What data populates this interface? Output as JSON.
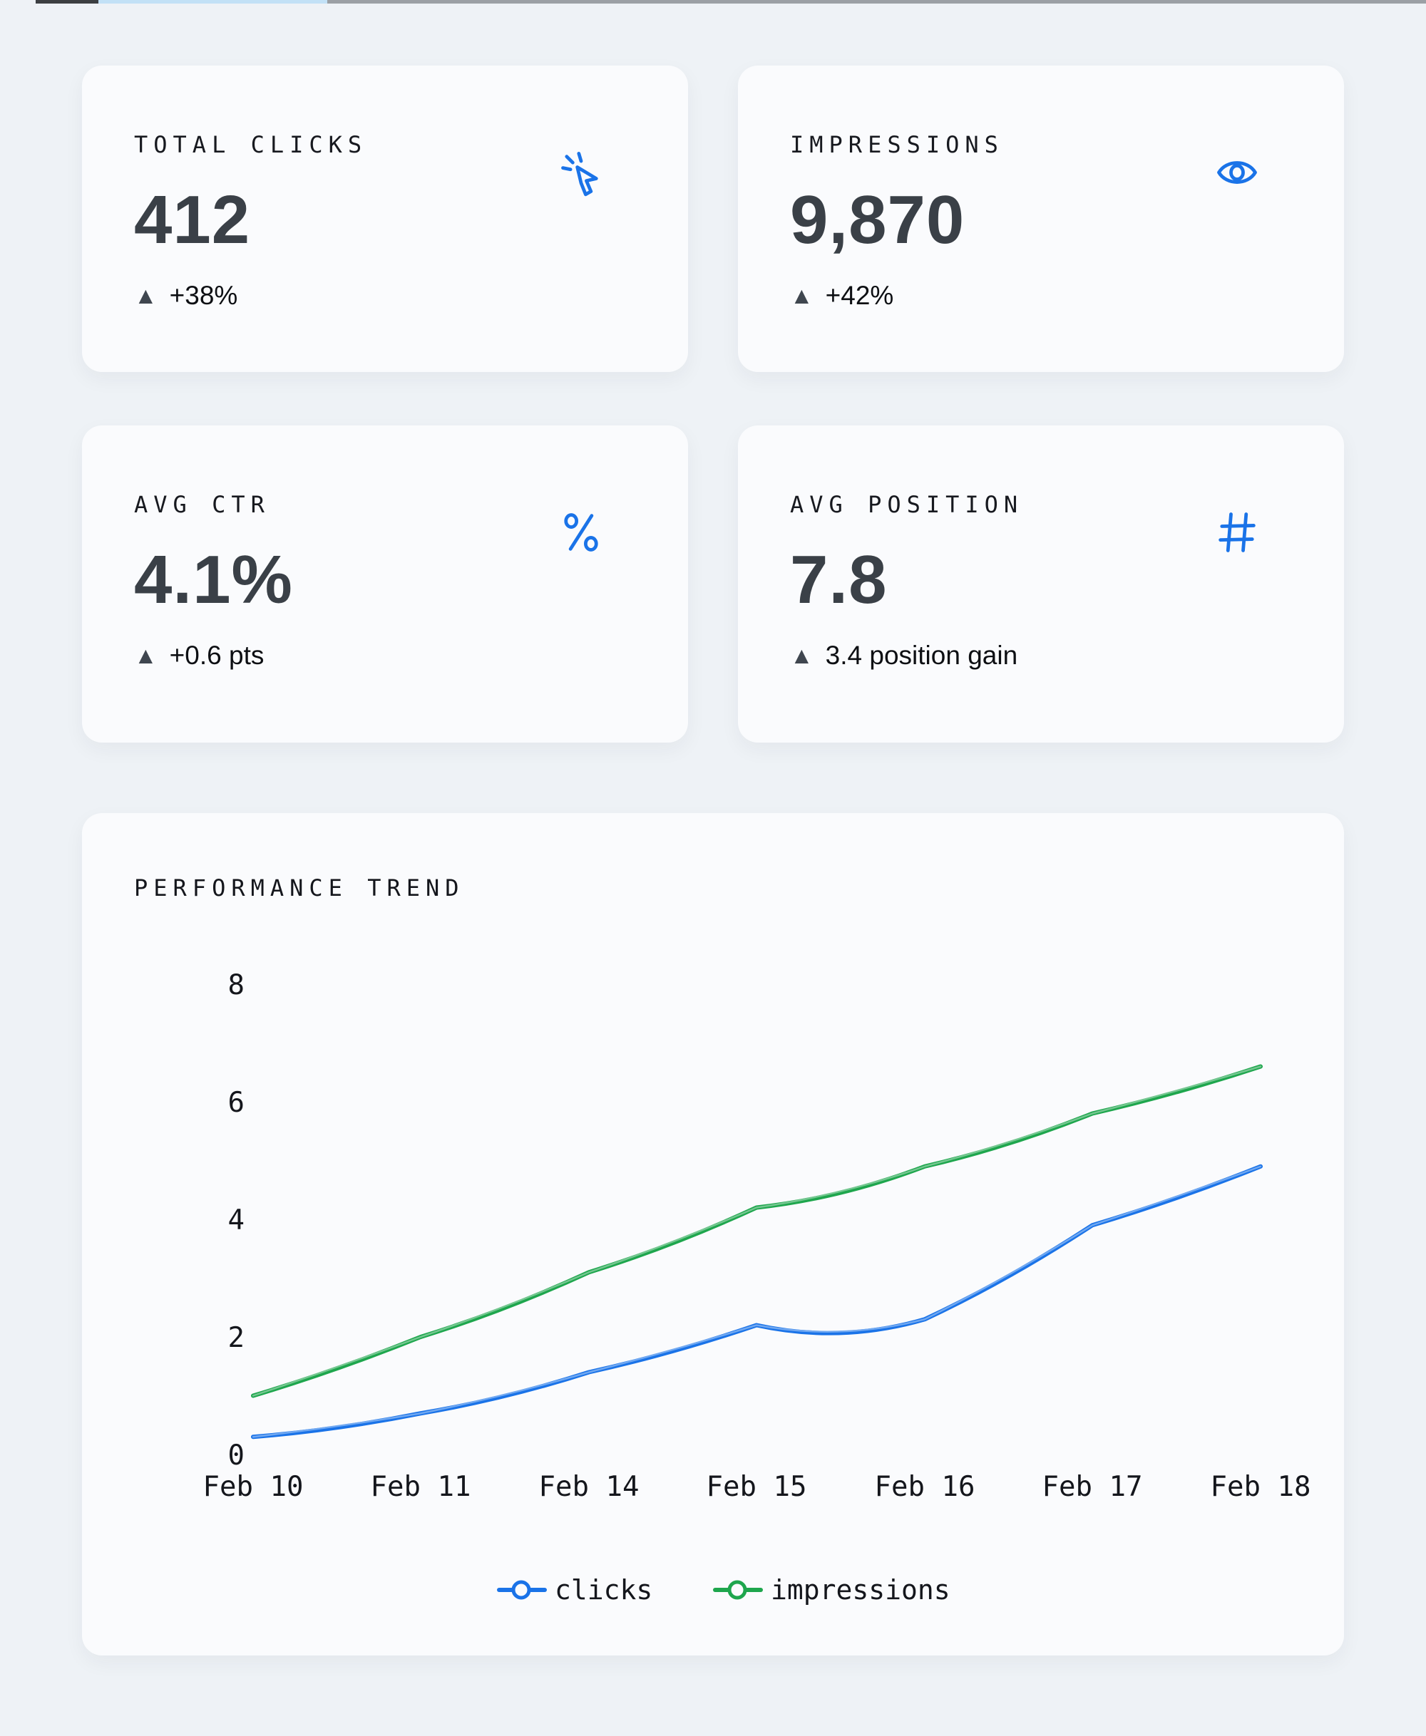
{
  "theme": {
    "page_background": "#eef2f6",
    "card_background": "#fafbfd",
    "accent_blue": "#1a73e8",
    "accent_green": "#1ea64d",
    "value_color": "#3a4047"
  },
  "stat_cards": [
    {
      "title": "TOTAL CLICKS",
      "value": "412",
      "delta_arrow": "▲",
      "delta": "+38%",
      "icon": "cursor-click-icon"
    },
    {
      "title": "IMPRESSIONS",
      "value": "9,870",
      "delta_arrow": "▲",
      "delta": "+42%",
      "icon": "eye-icon"
    },
    {
      "title": "AVG CTR",
      "value": "4.1%",
      "delta_arrow": "▲",
      "delta": "+0.6 pts",
      "icon": "percent-icon"
    },
    {
      "title": "AVG POSITION",
      "value": "7.8",
      "delta_arrow": "▲",
      "delta": "3.4 position gain",
      "icon": "hash-icon"
    }
  ],
  "chart": {
    "title": "PERFORMANCE TREND"
  },
  "chart_data": {
    "type": "line",
    "title": "PERFORMANCE TREND",
    "categories": [
      "Feb 10",
      "Feb 11",
      "Feb 14",
      "Feb 15",
      "Feb 16",
      "Feb 17",
      "Feb 18"
    ],
    "series": [
      {
        "name": "clicks",
        "color": "#1a73e8",
        "values": [
          0.3,
          0.7,
          1.4,
          2.2,
          2.3,
          3.9,
          4.9
        ]
      },
      {
        "name": "impressions",
        "color": "#1ea64d",
        "values": [
          1.0,
          2.0,
          3.1,
          4.2,
          4.9,
          5.8,
          6.6
        ]
      }
    ],
    "xlabel": "",
    "ylabel": "",
    "ylim": [
      0,
      8
    ],
    "yticks": [
      0,
      2,
      4,
      6,
      8
    ],
    "grid": false,
    "axis_lines": false,
    "line_style": "hand-drawn",
    "legend_position": "bottom"
  }
}
